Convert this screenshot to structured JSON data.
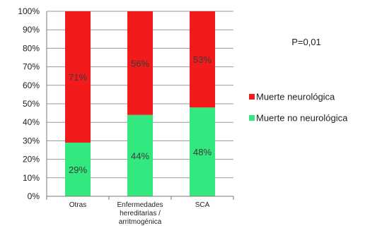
{
  "chart_data": {
    "type": "bar",
    "stacked": true,
    "normalized": true,
    "categories": [
      [
        "Otras"
      ],
      [
        "Enfermedades",
        "hereditarias /",
        "arritmogénica"
      ],
      [
        "SCA"
      ]
    ],
    "series": [
      {
        "name": "Muerte no neurológica",
        "color": "#33e87f",
        "values": [
          29,
          44,
          48
        ],
        "labels": [
          "29%",
          "44%",
          "48%"
        ]
      },
      {
        "name": "Muerte neurológica",
        "color": "#f21a1a",
        "values": [
          71,
          56,
          53
        ],
        "labels": [
          "71%",
          "56%",
          "53%"
        ]
      }
    ],
    "ylim": [
      0,
      100
    ],
    "yticks": [
      "0%",
      "10%",
      "20%",
      "30%",
      "40%",
      "50%",
      "60%",
      "70%",
      "80%",
      "90%",
      "100%"
    ],
    "grid": true,
    "legend_position": "right",
    "legend_order": [
      "Muerte neurológica",
      "Muerte no neurológica"
    ],
    "annotation": "P=0,01"
  }
}
